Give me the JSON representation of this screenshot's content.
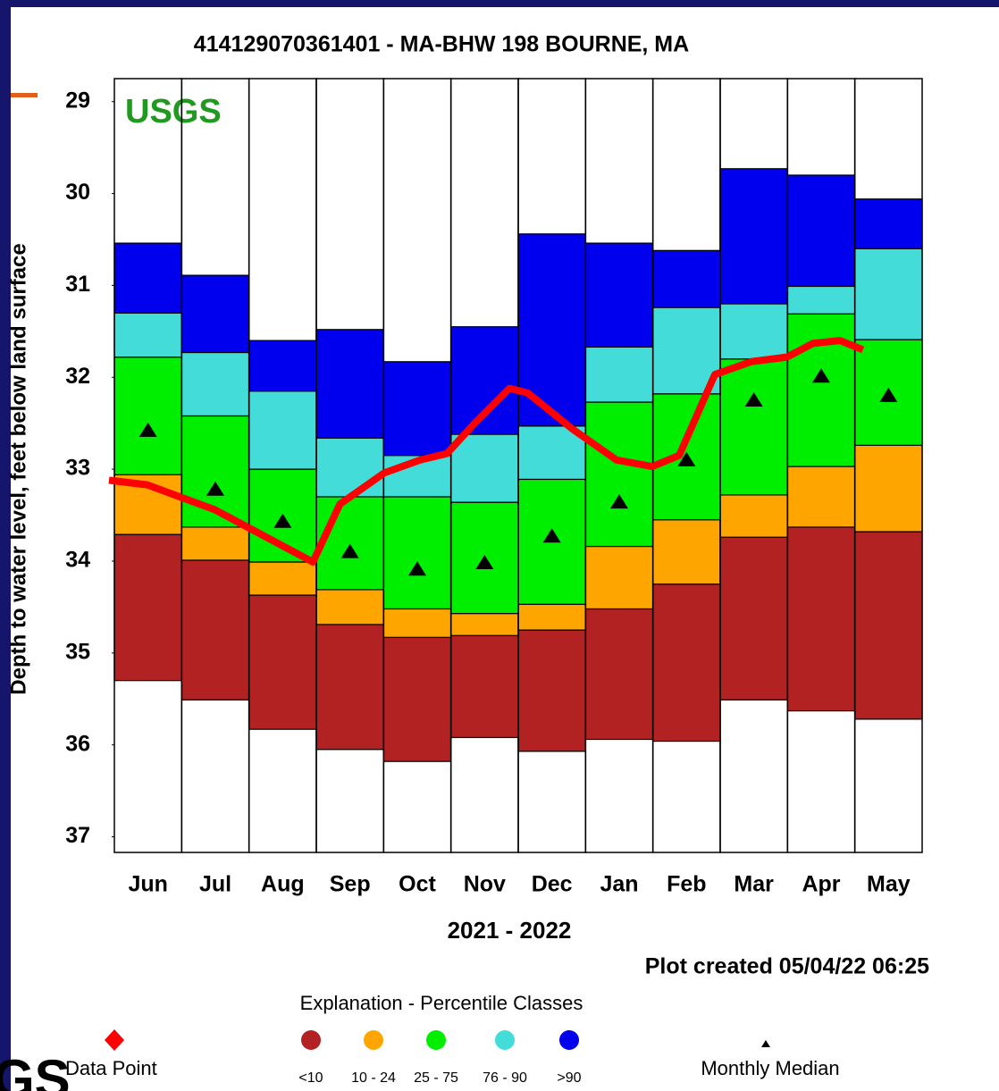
{
  "chart_data": {
    "type": "percentile_bands",
    "title": "414129070361401 - MA-BHW 198 BOURNE, MA",
    "watermark": "USGS",
    "y_label": "Depth to water level, feet below land surface",
    "x_label": "2021 - 2022",
    "note": "Plot created 05/04/22 06:25",
    "legend_title": "Explanation - Percentile Classes",
    "categories": [
      "Jun",
      "Jul",
      "Aug",
      "Sep",
      "Oct",
      "Nov",
      "Dec",
      "Jan",
      "Feb",
      "Mar",
      "Apr",
      "May"
    ],
    "ylim": [
      28.75,
      37.17
    ],
    "yticks": [
      29,
      30,
      31,
      32,
      33,
      34,
      35,
      36,
      37
    ],
    "y_inverted": true,
    "series": [
      {
        "name": "<10",
        "color": "#b22222",
        "values": [
          [
            33.71,
            35.3
          ],
          [
            33.99,
            35.51
          ],
          [
            34.37,
            35.83
          ],
          [
            34.69,
            36.05
          ],
          [
            34.83,
            36.18
          ],
          [
            34.81,
            35.92
          ],
          [
            34.75,
            36.07
          ],
          [
            34.52,
            35.94
          ],
          [
            34.25,
            35.96
          ],
          [
            33.74,
            35.51
          ],
          [
            33.63,
            35.63
          ],
          [
            33.68,
            35.72
          ]
        ]
      },
      {
        "name": "10 - 24",
        "color": "#ffa500",
        "values": [
          [
            33.06,
            33.71
          ],
          [
            33.63,
            33.99
          ],
          [
            34.01,
            34.37
          ],
          [
            34.31,
            34.69
          ],
          [
            34.52,
            34.83
          ],
          [
            34.57,
            34.81
          ],
          [
            34.47,
            34.75
          ],
          [
            33.84,
            34.52
          ],
          [
            33.55,
            34.25
          ],
          [
            33.28,
            33.74
          ],
          [
            32.97,
            33.63
          ],
          [
            32.74,
            33.68
          ]
        ]
      },
      {
        "name": "25 - 75",
        "color": "#00ee00",
        "values": [
          [
            31.78,
            33.06
          ],
          [
            32.42,
            33.63
          ],
          [
            33.0,
            34.01
          ],
          [
            33.3,
            34.31
          ],
          [
            33.3,
            34.52
          ],
          [
            33.36,
            34.57
          ],
          [
            33.11,
            34.47
          ],
          [
            32.27,
            33.84
          ],
          [
            32.18,
            33.55
          ],
          [
            31.8,
            33.28
          ],
          [
            31.31,
            32.97
          ],
          [
            31.59,
            32.74
          ]
        ]
      },
      {
        "name": "76 - 90",
        "color": "#44dcd8",
        "values": [
          [
            31.3,
            31.78
          ],
          [
            31.73,
            32.42
          ],
          [
            32.15,
            33.0
          ],
          [
            32.66,
            33.3
          ],
          [
            32.85,
            33.3
          ],
          [
            32.62,
            33.36
          ],
          [
            32.53,
            33.11
          ],
          [
            31.67,
            32.27
          ],
          [
            31.24,
            32.18
          ],
          [
            31.2,
            31.8
          ],
          [
            31.01,
            31.31
          ],
          [
            30.6,
            31.59
          ]
        ]
      },
      {
        "name": ">90",
        "color": "#0000ee",
        "values": [
          [
            30.54,
            31.3
          ],
          [
            30.89,
            31.73
          ],
          [
            31.6,
            32.15
          ],
          [
            31.48,
            32.66
          ],
          [
            31.83,
            32.85
          ],
          [
            31.45,
            32.62
          ],
          [
            30.44,
            32.53
          ],
          [
            30.54,
            31.67
          ],
          [
            30.62,
            31.24
          ],
          [
            29.73,
            31.2
          ],
          [
            29.8,
            31.01
          ],
          [
            30.06,
            30.6
          ]
        ]
      }
    ],
    "median": {
      "name": "Monthly Median",
      "color": "#000000",
      "values": [
        32.58,
        33.22,
        33.57,
        33.9,
        34.09,
        34.02,
        33.73,
        33.36,
        32.9,
        32.25,
        31.99,
        32.2
      ]
    },
    "data_points": {
      "name": "Data Point",
      "color": "#ff0000",
      "xlim": [
        0,
        12
      ],
      "x": [
        -0.08,
        0.49,
        1.49,
        2.95,
        3.35,
        4.01,
        4.54,
        4.94,
        5.34,
        5.87,
        6.14,
        6.8,
        7.46,
        7.99,
        8.39,
        8.92,
        9.46,
        9.99,
        10.38,
        10.78,
        11.12
      ],
      "values": [
        33.12,
        33.17,
        33.44,
        34.01,
        33.38,
        33.04,
        32.9,
        32.83,
        32.51,
        32.12,
        32.17,
        32.56,
        32.9,
        32.97,
        32.85,
        31.97,
        31.83,
        31.78,
        31.63,
        31.6,
        31.7
      ]
    }
  },
  "frame": {
    "logo": "GS"
  }
}
